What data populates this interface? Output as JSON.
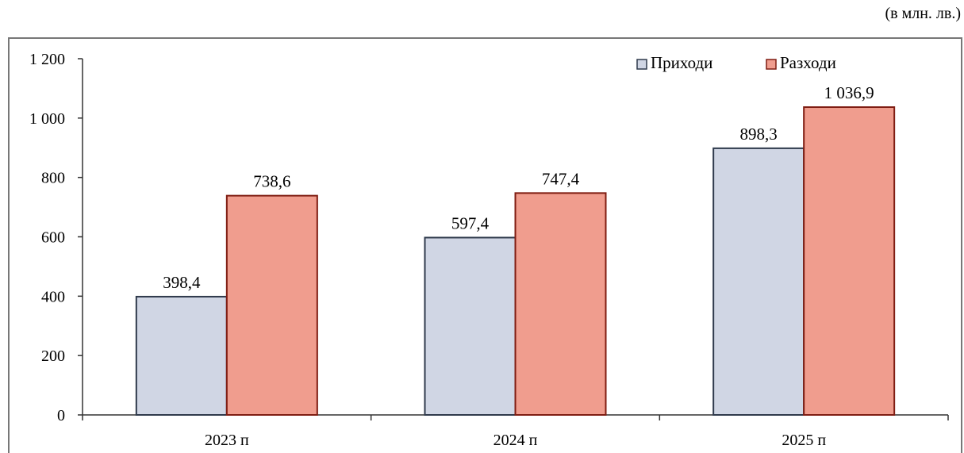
{
  "unit_note": "(в млн. лв.)",
  "colors": {
    "income_fill": "#d0d6e4",
    "income_stroke": "#2f3a4c",
    "expense_fill": "#f09d8e",
    "expense_stroke": "#7f1d12",
    "axis": "#333333",
    "frame": "#777777"
  },
  "chart_data": {
    "type": "bar",
    "title": "",
    "xlabel": "",
    "ylabel": "",
    "categories": [
      "2023 п",
      "2024 п",
      "2025 п"
    ],
    "ylim": [
      0,
      1200
    ],
    "yticks": [
      0,
      200,
      400,
      600,
      800,
      1000,
      1200
    ],
    "ytick_labels": [
      "0",
      "200",
      "400",
      "600",
      "800",
      "1 000",
      "1 200"
    ],
    "grid": false,
    "legend_position": "top-right",
    "series": [
      {
        "name": "Приходи",
        "values": [
          398.4,
          597.4,
          898.3
        ],
        "labels": [
          "398,4",
          "597,4",
          "898,3"
        ]
      },
      {
        "name": "Разходи",
        "values": [
          738.6,
          747.4,
          1036.9
        ],
        "labels": [
          "738,6",
          "747,4",
          "1 036,9"
        ]
      }
    ]
  }
}
